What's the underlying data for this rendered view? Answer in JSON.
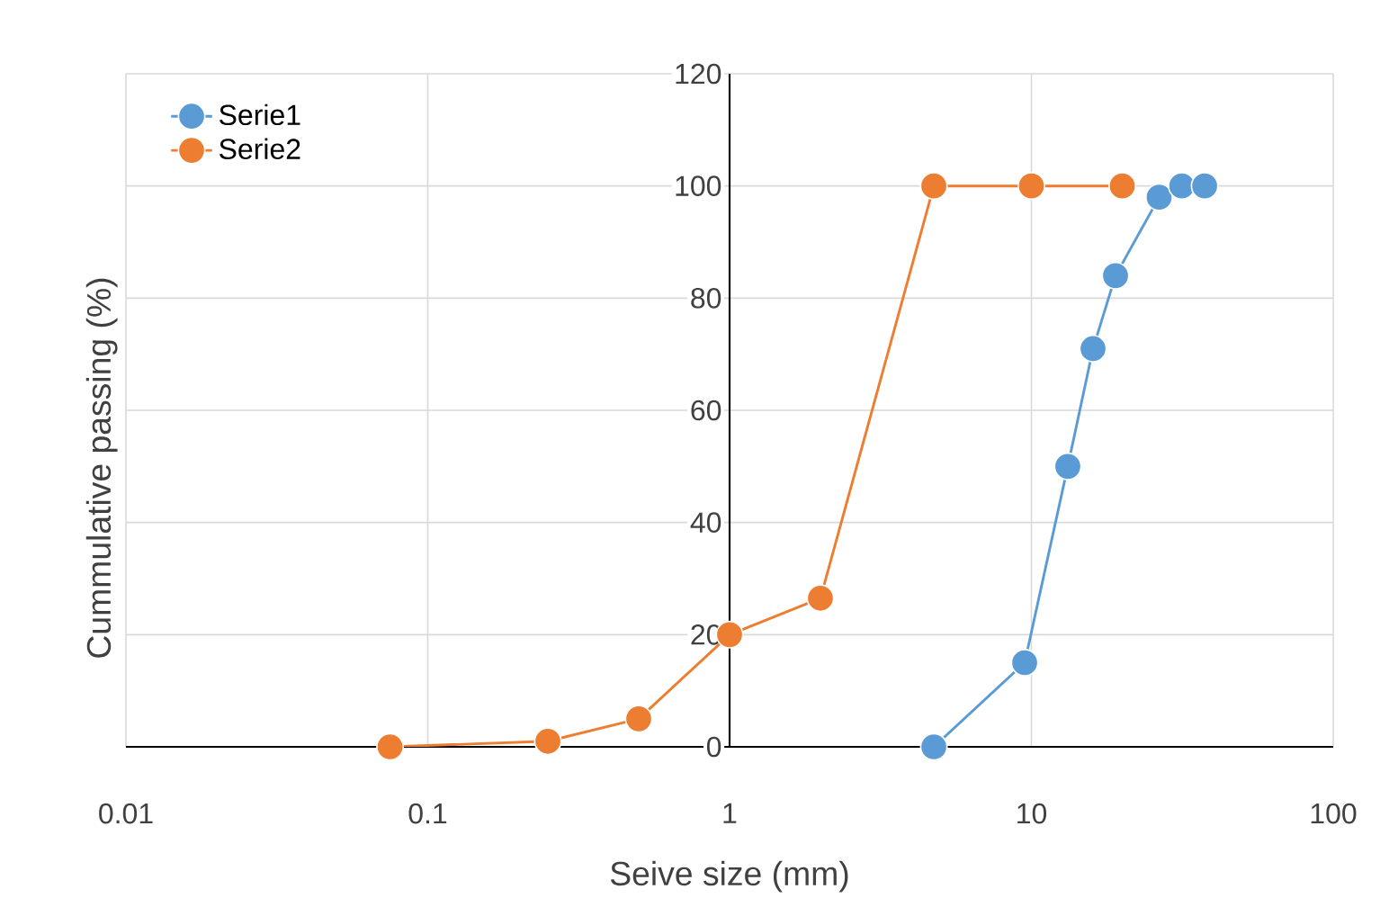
{
  "chart_data": {
    "type": "line",
    "xlabel": "Seive size (mm)",
    "ylabel": "Cummulative passing (%)",
    "log": "x",
    "grid": true,
    "legend": "top left",
    "marker": "circle",
    "line_style": "solid",
    "xlim": [
      0.01,
      100
    ],
    "ylim": [
      0,
      120
    ],
    "xticks": [
      0.01,
      0.1,
      1,
      10,
      100
    ],
    "yticks": [
      0,
      20,
      40,
      60,
      80,
      100,
      120
    ],
    "series": [
      {
        "name": "Serie1",
        "color": "#5b9bd5",
        "x": [
          4.75,
          9.5,
          13.2,
          16,
          19,
          26.5,
          31.5,
          37.5
        ],
        "values": [
          0,
          15,
          50,
          71,
          84,
          98,
          100,
          100
        ]
      },
      {
        "name": "Serie2",
        "color": "#ed7d31",
        "x": [
          0.075,
          0.25,
          0.5,
          1,
          2,
          4.75,
          10,
          20
        ],
        "values": [
          0,
          1,
          5,
          20,
          26.5,
          100,
          100,
          100
        ]
      }
    ]
  }
}
